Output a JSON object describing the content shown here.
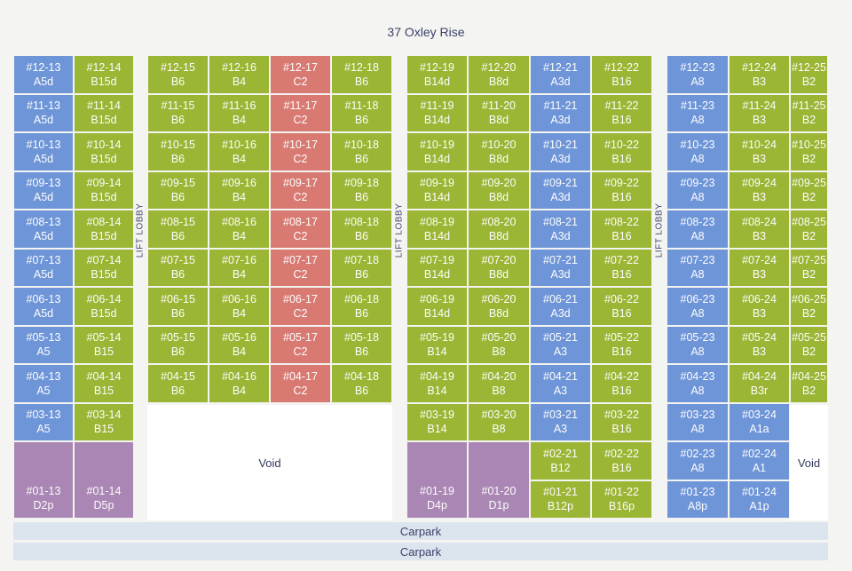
{
  "title": "37 Oxley Rise",
  "labels": {
    "lift_lobby": "LIFT LOBBY",
    "void": "Void",
    "carpark": "Carpark"
  },
  "colors": {
    "blue": "#6e95d8",
    "green": "#9bb534",
    "red": "#d97a72",
    "purple": "#a986b3"
  },
  "floors": [
    "12",
    "11",
    "10",
    "09",
    "08",
    "07",
    "06",
    "05",
    "04",
    "03",
    "02",
    "01"
  ],
  "stacks": [
    {
      "stack": "13",
      "types": {
        "12": "A5d",
        "11": "A5d",
        "10": "A5d",
        "09": "A5d",
        "08": "A5d",
        "07": "A5d",
        "06": "A5d",
        "05": "A5",
        "04": "A5",
        "03": "A5",
        "01": "D2p"
      },
      "colors": {
        "12": "blue",
        "11": "blue",
        "10": "blue",
        "09": "blue",
        "08": "blue",
        "07": "blue",
        "06": "blue",
        "05": "blue",
        "04": "blue",
        "03": "blue",
        "01": "purple"
      }
    },
    {
      "stack": "14",
      "types": {
        "12": "B15d",
        "11": "B15d",
        "10": "B15d",
        "09": "B15d",
        "08": "B15d",
        "07": "B15d",
        "06": "B15d",
        "05": "B15",
        "04": "B15",
        "03": "B15",
        "01": "D5p"
      },
      "colors": {
        "12": "green",
        "11": "green",
        "10": "green",
        "09": "green",
        "08": "green",
        "07": "green",
        "06": "green",
        "05": "green",
        "04": "green",
        "03": "green",
        "01": "purple"
      }
    },
    {
      "stack": "15",
      "types": {
        "12": "B6",
        "11": "B6",
        "10": "B6",
        "09": "B6",
        "08": "B6",
        "07": "B6",
        "06": "B6",
        "05": "B6",
        "04": "B6"
      },
      "colors": {
        "12": "green",
        "11": "green",
        "10": "green",
        "09": "green",
        "08": "green",
        "07": "green",
        "06": "green",
        "05": "green",
        "04": "green"
      }
    },
    {
      "stack": "16",
      "types": {
        "12": "B4",
        "11": "B4",
        "10": "B4",
        "09": "B4",
        "08": "B4",
        "07": "B4",
        "06": "B4",
        "05": "B4",
        "04": "B4"
      },
      "colors": {
        "12": "green",
        "11": "green",
        "10": "green",
        "09": "green",
        "08": "green",
        "07": "green",
        "06": "green",
        "05": "green",
        "04": "green"
      }
    },
    {
      "stack": "17",
      "types": {
        "12": "C2",
        "11": "C2",
        "10": "C2",
        "09": "C2",
        "08": "C2",
        "07": "C2",
        "06": "C2",
        "05": "C2",
        "04": "C2"
      },
      "colors": {
        "12": "red",
        "11": "red",
        "10": "red",
        "09": "red",
        "08": "red",
        "07": "red",
        "06": "red",
        "05": "red",
        "04": "red"
      }
    },
    {
      "stack": "18",
      "types": {
        "12": "B6",
        "11": "B6",
        "10": "B6",
        "09": "B6",
        "08": "B6",
        "07": "B6",
        "06": "B6",
        "05": "B6",
        "04": "B6"
      },
      "colors": {
        "12": "green",
        "11": "green",
        "10": "green",
        "09": "green",
        "08": "green",
        "07": "green",
        "06": "green",
        "05": "green",
        "04": "green"
      }
    },
    {
      "stack": "19",
      "types": {
        "12": "B14d",
        "11": "B14d",
        "10": "B14d",
        "09": "B14d",
        "08": "B14d",
        "07": "B14d",
        "06": "B14d",
        "05": "B14",
        "04": "B14",
        "03": "B14",
        "01": "D4p"
      },
      "colors": {
        "12": "green",
        "11": "green",
        "10": "green",
        "09": "green",
        "08": "green",
        "07": "green",
        "06": "green",
        "05": "green",
        "04": "green",
        "03": "green",
        "01": "purple"
      }
    },
    {
      "stack": "20",
      "types": {
        "12": "B8d",
        "11": "B8d",
        "10": "B8d",
        "09": "B8d",
        "08": "B8d",
        "07": "B8d",
        "06": "B8d",
        "05": "B8",
        "04": "B8",
        "03": "B8",
        "01": "D1p"
      },
      "colors": {
        "12": "green",
        "11": "green",
        "10": "green",
        "09": "green",
        "08": "green",
        "07": "green",
        "06": "green",
        "05": "green",
        "04": "green",
        "03": "green",
        "01": "purple"
      }
    },
    {
      "stack": "21",
      "types": {
        "12": "A3d",
        "11": "A3d",
        "10": "A3d",
        "09": "A3d",
        "08": "A3d",
        "07": "A3d",
        "06": "A3d",
        "05": "A3",
        "04": "A3",
        "03": "A3",
        "02": "B12",
        "01": "B12p"
      },
      "colors": {
        "12": "blue",
        "11": "blue",
        "10": "blue",
        "09": "blue",
        "08": "blue",
        "07": "blue",
        "06": "blue",
        "05": "blue",
        "04": "blue",
        "03": "blue",
        "02": "green",
        "01": "green"
      }
    },
    {
      "stack": "22",
      "types": {
        "12": "B16",
        "11": "B16",
        "10": "B16",
        "09": "B16",
        "08": "B16",
        "07": "B16",
        "06": "B16",
        "05": "B16",
        "04": "B16",
        "03": "B16",
        "02": "B16",
        "01": "B16p"
      },
      "colors": {
        "12": "green",
        "11": "green",
        "10": "green",
        "09": "green",
        "08": "green",
        "07": "green",
        "06": "green",
        "05": "green",
        "04": "green",
        "03": "green",
        "02": "green",
        "01": "green"
      }
    },
    {
      "stack": "23",
      "types": {
        "12": "A8",
        "11": "A8",
        "10": "A8",
        "09": "A8",
        "08": "A8",
        "07": "A8",
        "06": "A8",
        "05": "A8",
        "04": "A8",
        "03": "A8",
        "02": "A8",
        "01": "A8p"
      },
      "colors": {
        "12": "blue",
        "11": "blue",
        "10": "blue",
        "09": "blue",
        "08": "blue",
        "07": "blue",
        "06": "blue",
        "05": "blue",
        "04": "blue",
        "03": "blue",
        "02": "blue",
        "01": "blue"
      }
    },
    {
      "stack": "24",
      "types": {
        "12": "B3",
        "11": "B3",
        "10": "B3",
        "09": "B3",
        "08": "B3",
        "07": "B3",
        "06": "B3",
        "05": "B3",
        "04": "B3r",
        "03": "A1a",
        "02": "A1",
        "01": "A1p"
      },
      "colors": {
        "12": "green",
        "11": "green",
        "10": "green",
        "09": "green",
        "08": "green",
        "07": "green",
        "06": "green",
        "05": "green",
        "04": "green",
        "03": "blue",
        "02": "blue",
        "01": "blue"
      }
    },
    {
      "stack": "25",
      "types": {
        "12": "B2",
        "11": "B2",
        "10": "B2",
        "09": "B2",
        "08": "B2",
        "07": "B2",
        "06": "B2",
        "05": "B2",
        "04": "B2"
      },
      "colors": {
        "12": "green",
        "11": "green",
        "10": "green",
        "09": "green",
        "08": "green",
        "07": "green",
        "06": "green",
        "05": "green",
        "04": "green"
      }
    }
  ]
}
